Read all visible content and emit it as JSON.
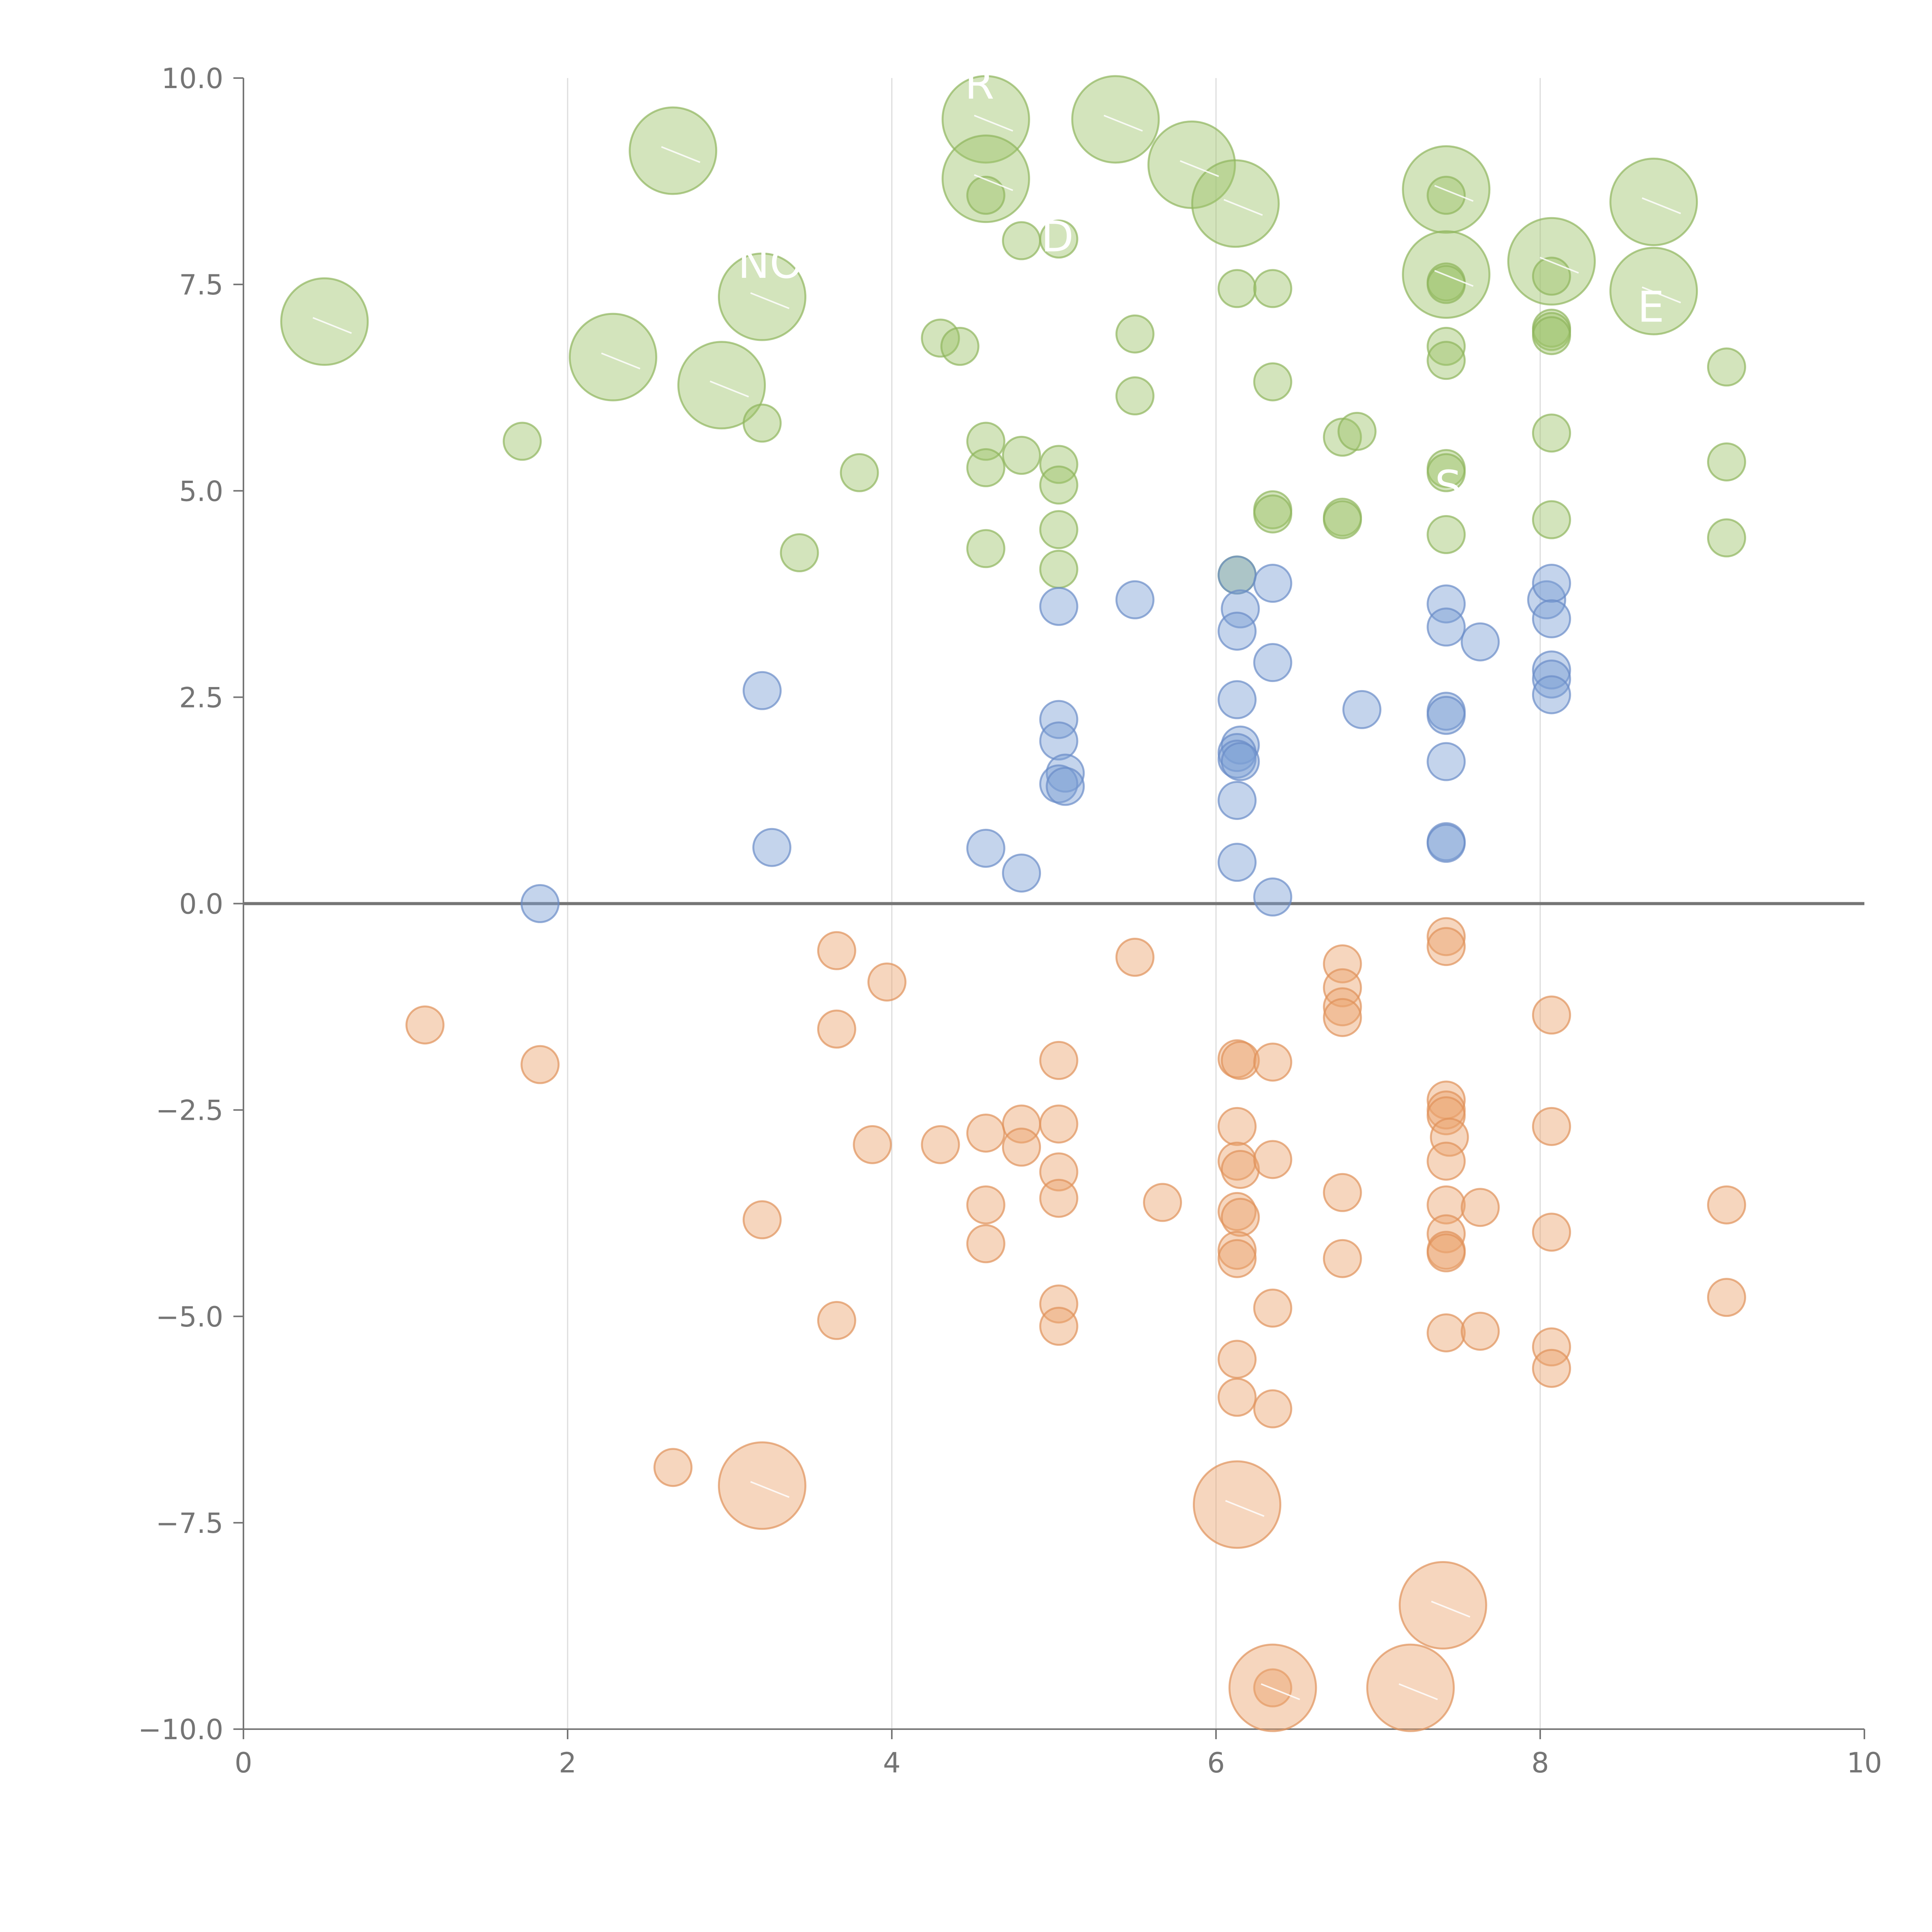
{
  "chart_data": {
    "type": "scatter",
    "title": "",
    "xlabel": "",
    "ylabel": "",
    "xlim": [
      0,
      10
    ],
    "ylim": [
      -10,
      10
    ],
    "grid": "vertical",
    "reference_line_y": 0,
    "x_ticks": [
      0,
      2,
      4,
      6,
      8,
      10
    ],
    "x_tick_labels": [
      "0",
      "2",
      "4",
      "6",
      "8",
      "10"
    ],
    "y_ticks": [
      10,
      7.5,
      5,
      2.5,
      0,
      -2.5,
      -5,
      -7.5,
      -10
    ],
    "y_tick_labels": [
      "10.0",
      "7.5",
      "5.0",
      "2.5",
      "0.0",
      "−2.5",
      "−5.0",
      "−7.5",
      "−10.0"
    ],
    "series": [
      {
        "name": "green",
        "color": "#9ec46a",
        "stroke": "#8fb55c",
        "points": [
          {
            "x": 0.5,
            "y": 7.05,
            "size": "large"
          },
          {
            "x": 2.28,
            "y": 6.62,
            "size": "large"
          },
          {
            "x": 2.65,
            "y": 9.12,
            "size": "large"
          },
          {
            "x": 2.95,
            "y": 6.28,
            "size": "large"
          },
          {
            "x": 3.2,
            "y": 7.35,
            "size": "large"
          },
          {
            "x": 4.58,
            "y": 9.5,
            "size": "large"
          },
          {
            "x": 4.58,
            "y": 8.78,
            "size": "large"
          },
          {
            "x": 5.38,
            "y": 9.5,
            "size": "large"
          },
          {
            "x": 5.85,
            "y": 8.95,
            "size": "large"
          },
          {
            "x": 6.12,
            "y": 8.48,
            "size": "large"
          },
          {
            "x": 7.42,
            "y": 8.65,
            "size": "large"
          },
          {
            "x": 7.42,
            "y": 7.62,
            "size": "large"
          },
          {
            "x": 8.07,
            "y": 7.78,
            "size": "large"
          },
          {
            "x": 8.7,
            "y": 8.5,
            "size": "large"
          },
          {
            "x": 8.7,
            "y": 7.42,
            "size": "large"
          },
          {
            "x": 1.72,
            "y": 5.6,
            "size": "small"
          },
          {
            "x": 3.2,
            "y": 5.82,
            "size": "small"
          },
          {
            "x": 3.43,
            "y": 4.25,
            "size": "small"
          },
          {
            "x": 3.8,
            "y": 5.22,
            "size": "small"
          },
          {
            "x": 4.3,
            "y": 6.85,
            "size": "small"
          },
          {
            "x": 4.42,
            "y": 6.75,
            "size": "small"
          },
          {
            "x": 4.58,
            "y": 8.58,
            "size": "small"
          },
          {
            "x": 4.58,
            "y": 5.6,
            "size": "small"
          },
          {
            "x": 4.58,
            "y": 5.28,
            "size": "small"
          },
          {
            "x": 4.58,
            "y": 4.3,
            "size": "small"
          },
          {
            "x": 4.8,
            "y": 8.03,
            "size": "small"
          },
          {
            "x": 4.8,
            "y": 5.43,
            "size": "small"
          },
          {
            "x": 5.03,
            "y": 8.05,
            "size": "small"
          },
          {
            "x": 5.03,
            "y": 5.32,
            "size": "small"
          },
          {
            "x": 5.03,
            "y": 5.07,
            "size": "small"
          },
          {
            "x": 5.03,
            "y": 4.53,
            "size": "small"
          },
          {
            "x": 5.03,
            "y": 4.05,
            "size": "small"
          },
          {
            "x": 5.5,
            "y": 6.9,
            "size": "small"
          },
          {
            "x": 5.5,
            "y": 6.15,
            "size": "small"
          },
          {
            "x": 6.13,
            "y": 7.45,
            "size": "small"
          },
          {
            "x": 6.13,
            "y": 3.98,
            "size": "small"
          },
          {
            "x": 6.35,
            "y": 7.45,
            "size": "small"
          },
          {
            "x": 6.35,
            "y": 6.32,
            "size": "small"
          },
          {
            "x": 6.35,
            "y": 4.77,
            "size": "small"
          },
          {
            "x": 6.35,
            "y": 4.72,
            "size": "small"
          },
          {
            "x": 6.78,
            "y": 5.65,
            "size": "small"
          },
          {
            "x": 6.78,
            "y": 4.68,
            "size": "small"
          },
          {
            "x": 6.78,
            "y": 4.65,
            "size": "small"
          },
          {
            "x": 6.87,
            "y": 5.72,
            "size": "small"
          },
          {
            "x": 7.42,
            "y": 8.58,
            "size": "small"
          },
          {
            "x": 7.42,
            "y": 7.53,
            "size": "small"
          },
          {
            "x": 7.42,
            "y": 7.5,
            "size": "small"
          },
          {
            "x": 7.42,
            "y": 6.75,
            "size": "small"
          },
          {
            "x": 7.42,
            "y": 6.58,
            "size": "small"
          },
          {
            "x": 7.42,
            "y": 5.27,
            "size": "small"
          },
          {
            "x": 7.42,
            "y": 5.22,
            "size": "small"
          },
          {
            "x": 7.42,
            "y": 4.47,
            "size": "small"
          },
          {
            "x": 8.07,
            "y": 7.6,
            "size": "small"
          },
          {
            "x": 8.07,
            "y": 6.97,
            "size": "small"
          },
          {
            "x": 8.07,
            "y": 6.93,
            "size": "small"
          },
          {
            "x": 8.07,
            "y": 6.88,
            "size": "small"
          },
          {
            "x": 8.07,
            "y": 5.7,
            "size": "small"
          },
          {
            "x": 8.07,
            "y": 4.65,
            "size": "small"
          },
          {
            "x": 9.15,
            "y": 6.5,
            "size": "small"
          },
          {
            "x": 9.15,
            "y": 5.35,
            "size": "small"
          },
          {
            "x": 9.15,
            "y": 4.43,
            "size": "small"
          }
        ]
      },
      {
        "name": "blue",
        "color": "#7d9fd4",
        "stroke": "#6a8cc8",
        "points": [
          {
            "x": 1.83,
            "y": 0.0,
            "size": "small"
          },
          {
            "x": 3.2,
            "y": 2.58,
            "size": "small"
          },
          {
            "x": 3.26,
            "y": 0.68,
            "size": "small"
          },
          {
            "x": 4.58,
            "y": 0.67,
            "size": "small"
          },
          {
            "x": 4.8,
            "y": 0.37,
            "size": "small"
          },
          {
            "x": 5.03,
            "y": 3.6,
            "size": "small"
          },
          {
            "x": 5.03,
            "y": 2.23,
            "size": "small"
          },
          {
            "x": 5.03,
            "y": 1.97,
            "size": "small"
          },
          {
            "x": 5.07,
            "y": 1.58,
            "size": "small"
          },
          {
            "x": 5.03,
            "y": 1.45,
            "size": "small"
          },
          {
            "x": 5.07,
            "y": 1.42,
            "size": "small"
          },
          {
            "x": 5.5,
            "y": 3.68,
            "size": "small"
          },
          {
            "x": 6.13,
            "y": 3.98,
            "size": "small"
          },
          {
            "x": 6.15,
            "y": 3.57,
            "size": "small"
          },
          {
            "x": 6.13,
            "y": 3.3,
            "size": "small"
          },
          {
            "x": 6.13,
            "y": 2.47,
            "size": "small"
          },
          {
            "x": 6.15,
            "y": 1.92,
            "size": "small"
          },
          {
            "x": 6.13,
            "y": 1.83,
            "size": "small"
          },
          {
            "x": 6.13,
            "y": 1.75,
            "size": "small"
          },
          {
            "x": 6.15,
            "y": 1.72,
            "size": "small"
          },
          {
            "x": 6.13,
            "y": 1.25,
            "size": "small"
          },
          {
            "x": 6.13,
            "y": 0.5,
            "size": "small"
          },
          {
            "x": 6.35,
            "y": 3.88,
            "size": "small"
          },
          {
            "x": 6.35,
            "y": 2.92,
            "size": "small"
          },
          {
            "x": 6.35,
            "y": 0.08,
            "size": "small"
          },
          {
            "x": 6.9,
            "y": 2.35,
            "size": "small"
          },
          {
            "x": 7.42,
            "y": 3.63,
            "size": "small"
          },
          {
            "x": 7.42,
            "y": 3.35,
            "size": "small"
          },
          {
            "x": 7.42,
            "y": 2.33,
            "size": "small"
          },
          {
            "x": 7.42,
            "y": 2.28,
            "size": "small"
          },
          {
            "x": 7.42,
            "y": 1.72,
            "size": "small"
          },
          {
            "x": 7.42,
            "y": 0.75,
            "size": "small"
          },
          {
            "x": 7.42,
            "y": 0.73,
            "size": "small"
          },
          {
            "x": 7.63,
            "y": 3.17,
            "size": "small"
          },
          {
            "x": 8.04,
            "y": 3.68,
            "size": "small"
          },
          {
            "x": 8.07,
            "y": 3.88,
            "size": "small"
          },
          {
            "x": 8.07,
            "y": 3.45,
            "size": "small"
          },
          {
            "x": 8.07,
            "y": 2.83,
            "size": "small"
          },
          {
            "x": 8.07,
            "y": 2.72,
            "size": "small"
          },
          {
            "x": 8.07,
            "y": 2.53,
            "size": "small"
          }
        ]
      },
      {
        "name": "orange",
        "color": "#eba46f",
        "stroke": "#e0925a",
        "points": [
          {
            "x": 1.12,
            "y": -1.47,
            "size": "small"
          },
          {
            "x": 1.83,
            "y": -1.95,
            "size": "small"
          },
          {
            "x": 2.65,
            "y": -6.83,
            "size": "small"
          },
          {
            "x": 3.2,
            "y": -3.83,
            "size": "small"
          },
          {
            "x": 3.2,
            "y": -7.05,
            "size": "large"
          },
          {
            "x": 3.66,
            "y": -0.57,
            "size": "small"
          },
          {
            "x": 3.66,
            "y": -1.52,
            "size": "small"
          },
          {
            "x": 3.66,
            "y": -5.05,
            "size": "small"
          },
          {
            "x": 3.88,
            "y": -2.92,
            "size": "small"
          },
          {
            "x": 3.97,
            "y": -0.95,
            "size": "small"
          },
          {
            "x": 4.3,
            "y": -2.92,
            "size": "small"
          },
          {
            "x": 4.58,
            "y": -2.78,
            "size": "small"
          },
          {
            "x": 4.58,
            "y": -3.65,
            "size": "small"
          },
          {
            "x": 4.58,
            "y": -4.12,
            "size": "small"
          },
          {
            "x": 4.8,
            "y": -2.67,
            "size": "small"
          },
          {
            "x": 4.8,
            "y": -2.95,
            "size": "small"
          },
          {
            "x": 5.03,
            "y": -1.9,
            "size": "small"
          },
          {
            "x": 5.03,
            "y": -2.67,
            "size": "small"
          },
          {
            "x": 5.03,
            "y": -3.25,
            "size": "small"
          },
          {
            "x": 5.03,
            "y": -3.57,
            "size": "small"
          },
          {
            "x": 5.03,
            "y": -4.85,
            "size": "small"
          },
          {
            "x": 5.03,
            "y": -5.12,
            "size": "small"
          },
          {
            "x": 5.5,
            "y": -0.65,
            "size": "small"
          },
          {
            "x": 5.67,
            "y": -3.62,
            "size": "small"
          },
          {
            "x": 6.13,
            "y": -1.88,
            "size": "small"
          },
          {
            "x": 6.15,
            "y": -1.9,
            "size": "small"
          },
          {
            "x": 6.13,
            "y": -2.7,
            "size": "small"
          },
          {
            "x": 6.13,
            "y": -3.12,
            "size": "small"
          },
          {
            "x": 6.15,
            "y": -3.22,
            "size": "small"
          },
          {
            "x": 6.13,
            "y": -3.73,
            "size": "small"
          },
          {
            "x": 6.15,
            "y": -3.8,
            "size": "small"
          },
          {
            "x": 6.13,
            "y": -4.2,
            "size": "small"
          },
          {
            "x": 6.13,
            "y": -4.3,
            "size": "small"
          },
          {
            "x": 6.13,
            "y": -5.52,
            "size": "small"
          },
          {
            "x": 6.13,
            "y": -5.98,
            "size": "small"
          },
          {
            "x": 6.13,
            "y": -7.28,
            "size": "large"
          },
          {
            "x": 6.35,
            "y": -1.92,
            "size": "small"
          },
          {
            "x": 6.35,
            "y": -3.1,
            "size": "small"
          },
          {
            "x": 6.35,
            "y": -4.9,
            "size": "small"
          },
          {
            "x": 6.35,
            "y": -6.12,
            "size": "small"
          },
          {
            "x": 6.35,
            "y": -9.5,
            "size": "small"
          },
          {
            "x": 6.35,
            "y": -9.5,
            "size": "large"
          },
          {
            "x": 6.78,
            "y": -0.73,
            "size": "small"
          },
          {
            "x": 6.78,
            "y": -1.02,
            "size": "small"
          },
          {
            "x": 6.78,
            "y": -1.25,
            "size": "small"
          },
          {
            "x": 6.78,
            "y": -1.38,
            "size": "small"
          },
          {
            "x": 6.78,
            "y": -3.5,
            "size": "small"
          },
          {
            "x": 6.78,
            "y": -4.3,
            "size": "small"
          },
          {
            "x": 7.2,
            "y": -9.5,
            "size": "large"
          },
          {
            "x": 7.42,
            "y": -0.4,
            "size": "small"
          },
          {
            "x": 7.42,
            "y": -0.52,
            "size": "small"
          },
          {
            "x": 7.42,
            "y": -2.38,
            "size": "small"
          },
          {
            "x": 7.42,
            "y": -2.5,
            "size": "small"
          },
          {
            "x": 7.42,
            "y": -2.57,
            "size": "small"
          },
          {
            "x": 7.44,
            "y": -2.83,
            "size": "small"
          },
          {
            "x": 7.42,
            "y": -3.12,
            "size": "small"
          },
          {
            "x": 7.42,
            "y": -3.65,
            "size": "small"
          },
          {
            "x": 7.42,
            "y": -4.0,
            "size": "small"
          },
          {
            "x": 7.42,
            "y": -4.2,
            "size": "small"
          },
          {
            "x": 7.42,
            "y": -4.23,
            "size": "small"
          },
          {
            "x": 7.42,
            "y": -5.2,
            "size": "small"
          },
          {
            "x": 7.4,
            "y": -8.5,
            "size": "large"
          },
          {
            "x": 7.63,
            "y": -3.68,
            "size": "small"
          },
          {
            "x": 7.63,
            "y": -5.18,
            "size": "small"
          },
          {
            "x": 8.07,
            "y": -1.35,
            "size": "small"
          },
          {
            "x": 8.07,
            "y": -2.7,
            "size": "small"
          },
          {
            "x": 8.07,
            "y": -3.98,
            "size": "small"
          },
          {
            "x": 8.07,
            "y": -5.37,
            "size": "small"
          },
          {
            "x": 8.07,
            "y": -5.63,
            "size": "small"
          },
          {
            "x": 9.15,
            "y": -3.65,
            "size": "small"
          },
          {
            "x": 9.15,
            "y": -4.77,
            "size": "small"
          }
        ]
      }
    ],
    "callouts": [
      {
        "text": "R",
        "x": 4.45,
        "y": 9.75,
        "anchor": "start"
      },
      {
        "text": "NO",
        "x": 3.05,
        "y": 7.58,
        "anchor": "start"
      },
      {
        "text": "D",
        "x": 4.92,
        "y": 7.9,
        "anchor": "start"
      },
      {
        "text": "S",
        "x": 7.35,
        "y": 4.88,
        "anchor": "start"
      },
      {
        "text": "E",
        "x": 8.6,
        "y": 7.05,
        "anchor": "start"
      }
    ]
  }
}
